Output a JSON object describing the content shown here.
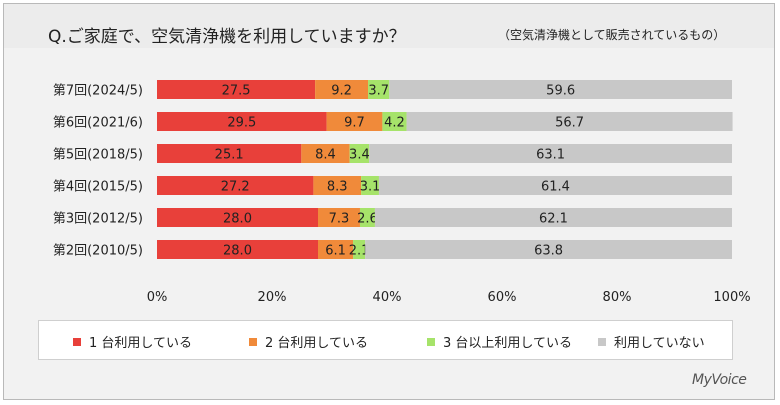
{
  "header": {
    "title": "Q.ご家庭で、空気清浄機を利用していますか？",
    "subtitle": "（空気清浄機として販売されているもの）"
  },
  "brand": "MyVoice",
  "chart_data": {
    "type": "bar",
    "stacked": true,
    "orientation": "horizontal",
    "categories": [
      "第7回(2024/5)",
      "第6回(2021/6)",
      "第5回(2018/5)",
      "第4回(2015/5)",
      "第3回(2012/5)",
      "第2回(2010/5)"
    ],
    "series": [
      {
        "name": "1 台利用している",
        "color": "#e8403a",
        "values": [
          27.5,
          29.5,
          25.1,
          27.2,
          28.0,
          28.0
        ]
      },
      {
        "name": "2 台利用している",
        "color": "#f08a3a",
        "values": [
          9.2,
          9.7,
          8.4,
          8.3,
          7.3,
          6.1
        ]
      },
      {
        "name": "3 台以上利用している",
        "color": "#a6e36a",
        "values": [
          3.7,
          4.2,
          3.4,
          3.1,
          2.6,
          2.1
        ]
      },
      {
        "name": "利用していない",
        "color": "#c8c8c8",
        "values": [
          59.6,
          56.7,
          63.1,
          61.4,
          62.1,
          63.8
        ]
      }
    ],
    "x_ticks": [
      "0%",
      "20%",
      "40%",
      "60%",
      "80%",
      "100%"
    ],
    "xlim": [
      0,
      100
    ],
    "legend_position": "bottom",
    "grid": false
  }
}
